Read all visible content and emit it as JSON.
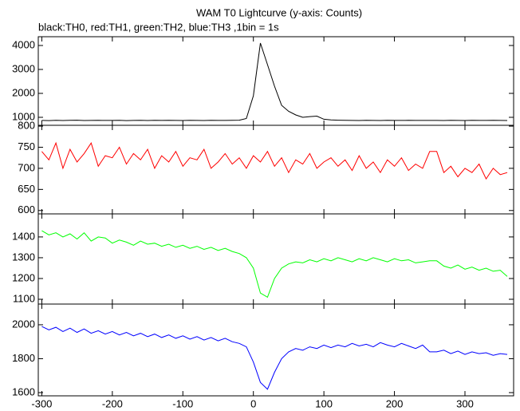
{
  "chart_data": {
    "type": "line",
    "title": "WAM T0 Lightcurve (y-axis: Counts)",
    "subtitle": "black:TH0, red:TH1, green:TH2, blue:TH3 ,1bin = 1s",
    "x": [
      -300,
      -290,
      -280,
      -270,
      -260,
      -250,
      -240,
      -230,
      -220,
      -210,
      -200,
      -190,
      -180,
      -170,
      -160,
      -150,
      -140,
      -130,
      -120,
      -110,
      -100,
      -90,
      -80,
      -70,
      -60,
      -50,
      -40,
      -30,
      -20,
      -10,
      0,
      10,
      20,
      30,
      40,
      50,
      60,
      70,
      80,
      90,
      100,
      110,
      120,
      130,
      140,
      150,
      160,
      170,
      180,
      190,
      200,
      210,
      220,
      230,
      240,
      250,
      260,
      270,
      280,
      290,
      300,
      310,
      320,
      330,
      340,
      350,
      360
    ],
    "xlim": [
      -305,
      369
    ],
    "xticks": [
      -300,
      -200,
      -100,
      0,
      100,
      200,
      300
    ],
    "panels": [
      {
        "color": "#000000",
        "ylim": [
          667,
          4367
        ],
        "yticks": [
          1000,
          2000,
          3000,
          4000
        ],
        "values": [
          870,
          865,
          875,
          868,
          872,
          880,
          866,
          870,
          874,
          869,
          871,
          878,
          864,
          870,
          873,
          867,
          872,
          869,
          875,
          870,
          866,
          872,
          870,
          868,
          874,
          871,
          869,
          876,
          880,
          950,
          1900,
          4100,
          3200,
          2300,
          1500,
          1250,
          1100,
          1000,
          1030,
          1050,
          920,
          890,
          880,
          872,
          870,
          868,
          875,
          870,
          866,
          872,
          870,
          869,
          874,
          871,
          870,
          870,
          870,
          868,
          874,
          870,
          866,
          872,
          871,
          869,
          875,
          870,
          868
        ]
      },
      {
        "color": "#ff0000",
        "ylim": [
          592,
          802
        ],
        "yticks": [
          600,
          650,
          700,
          750,
          800
        ],
        "values": [
          740,
          720,
          760,
          700,
          745,
          715,
          735,
          760,
          705,
          730,
          725,
          750,
          710,
          735,
          720,
          745,
          700,
          730,
          715,
          740,
          705,
          725,
          720,
          745,
          700,
          715,
          735,
          710,
          725,
          700,
          730,
          715,
          740,
          705,
          725,
          690,
          720,
          710,
          735,
          700,
          715,
          725,
          705,
          720,
          695,
          730,
          700,
          715,
          690,
          720,
          705,
          725,
          695,
          710,
          700,
          740,
          740,
          690,
          705,
          680,
          700,
          690,
          710,
          675,
          700,
          685,
          690
        ]
      },
      {
        "color": "#00ff00",
        "ylim": [
          1077,
          1511
        ],
        "yticks": [
          1100,
          1200,
          1300,
          1400
        ],
        "values": [
          1430,
          1410,
          1420,
          1400,
          1415,
          1390,
          1420,
          1380,
          1400,
          1395,
          1370,
          1385,
          1375,
          1360,
          1380,
          1365,
          1370,
          1355,
          1365,
          1350,
          1360,
          1345,
          1355,
          1340,
          1350,
          1335,
          1345,
          1330,
          1320,
          1300,
          1250,
          1130,
          1110,
          1200,
          1250,
          1270,
          1280,
          1275,
          1290,
          1280,
          1295,
          1285,
          1300,
          1290,
          1280,
          1295,
          1285,
          1300,
          1290,
          1280,
          1295,
          1285,
          1290,
          1275,
          1280,
          1285,
          1285,
          1260,
          1250,
          1265,
          1245,
          1255,
          1240,
          1250,
          1235,
          1240,
          1210
        ]
      },
      {
        "color": "#0000ff",
        "ylim": [
          1581,
          2122
        ],
        "yticks": [
          1600,
          1800,
          2000
        ],
        "values": [
          1990,
          1970,
          1985,
          1960,
          1980,
          1955,
          1975,
          1950,
          1965,
          1945,
          1960,
          1940,
          1955,
          1935,
          1950,
          1930,
          1945,
          1925,
          1940,
          1920,
          1935,
          1915,
          1930,
          1910,
          1925,
          1905,
          1920,
          1900,
          1890,
          1870,
          1780,
          1660,
          1620,
          1720,
          1800,
          1840,
          1860,
          1850,
          1870,
          1860,
          1880,
          1865,
          1880,
          1870,
          1890,
          1875,
          1885,
          1870,
          1895,
          1880,
          1870,
          1890,
          1875,
          1860,
          1880,
          1840,
          1840,
          1850,
          1830,
          1845,
          1825,
          1840,
          1830,
          1835,
          1820,
          1830,
          1825
        ]
      }
    ]
  }
}
